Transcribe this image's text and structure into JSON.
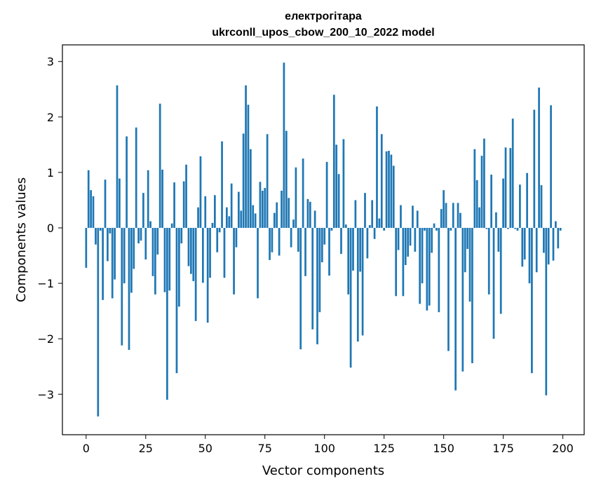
{
  "chart_data": {
    "type": "bar",
    "title": "електрогітара",
    "subtitle": "ukrconll_upos_cbow_200_10_2022 model",
    "xlabel": "Vector components",
    "ylabel": "Components values",
    "xlim": [
      -9.95,
      208.95
    ],
    "ylim": [
      -3.73,
      3.3
    ],
    "xticks": [
      0,
      25,
      50,
      75,
      100,
      125,
      150,
      175,
      200
    ],
    "xtick_labels": [
      "0",
      "25",
      "50",
      "75",
      "100",
      "125",
      "150",
      "175",
      "200"
    ],
    "yticks": [
      -3,
      -2,
      -1,
      0,
      1,
      2,
      3
    ],
    "ytick_labels": [
      "−3",
      "−2",
      "−1",
      "0",
      "1",
      "2",
      "3"
    ],
    "grid": false,
    "legend": "none",
    "bar_color": "#1f77b4",
    "x": [
      0,
      1,
      2,
      3,
      4,
      5,
      6,
      7,
      8,
      9,
      10,
      11,
      12,
      13,
      14,
      15,
      16,
      17,
      18,
      19,
      20,
      21,
      22,
      23,
      24,
      25,
      26,
      27,
      28,
      29,
      30,
      31,
      32,
      33,
      34,
      35,
      36,
      37,
      38,
      39,
      40,
      41,
      42,
      43,
      44,
      45,
      46,
      47,
      48,
      49,
      50,
      51,
      52,
      53,
      54,
      55,
      56,
      57,
      58,
      59,
      60,
      61,
      62,
      63,
      64,
      65,
      66,
      67,
      68,
      69,
      70,
      71,
      72,
      73,
      74,
      75,
      76,
      77,
      78,
      79,
      80,
      81,
      82,
      83,
      84,
      85,
      86,
      87,
      88,
      89,
      90,
      91,
      92,
      93,
      94,
      95,
      96,
      97,
      98,
      99,
      100,
      101,
      102,
      103,
      104,
      105,
      106,
      107,
      108,
      109,
      110,
      111,
      112,
      113,
      114,
      115,
      116,
      117,
      118,
      119,
      120,
      121,
      122,
      123,
      124,
      125,
      126,
      127,
      128,
      129,
      130,
      131,
      132,
      133,
      134,
      135,
      136,
      137,
      138,
      139,
      140,
      141,
      142,
      143,
      144,
      145,
      146,
      147,
      148,
      149,
      150,
      151,
      152,
      153,
      154,
      155,
      156,
      157,
      158,
      159,
      160,
      161,
      162,
      163,
      164,
      165,
      166,
      167,
      168,
      169,
      170,
      171,
      172,
      173,
      174,
      175,
      176,
      177,
      178,
      179,
      180,
      181,
      182,
      183,
      184,
      185,
      186,
      187,
      188,
      189,
      190,
      191,
      192,
      193,
      194,
      195,
      196,
      197,
      198,
      199
    ],
    "values": [
      -0.72,
      1.04,
      0.68,
      0.57,
      -0.3,
      -3.4,
      -0.05,
      -1.3,
      0.87,
      -0.6,
      -0.1,
      -1.27,
      -0.93,
      2.57,
      0.89,
      -2.12,
      -1.0,
      1.65,
      -2.2,
      -1.17,
      -0.74,
      1.81,
      -0.28,
      -0.23,
      0.63,
      -0.57,
      1.04,
      0.12,
      -0.87,
      -1.2,
      -0.48,
      2.24,
      1.05,
      -1.16,
      -3.1,
      -1.13,
      0.08,
      0.82,
      -2.62,
      -1.42,
      -0.28,
      0.84,
      1.14,
      -0.69,
      -0.83,
      -0.96,
      -1.68,
      0.37,
      1.29,
      -0.99,
      0.57,
      -1.71,
      -0.9,
      0.09,
      0.59,
      -0.44,
      -0.08,
      1.56,
      -0.9,
      0.37,
      0.21,
      0.8,
      -1.2,
      -0.35,
      0.65,
      0.31,
      1.7,
      2.57,
      2.22,
      1.42,
      0.41,
      0.26,
      -1.27,
      0.83,
      0.67,
      0.72,
      1.69,
      -0.58,
      -0.44,
      0.27,
      0.46,
      -0.5,
      0.67,
      2.98,
      1.75,
      0.54,
      -0.35,
      0.15,
      1.09,
      -0.43,
      -2.19,
      1.25,
      -0.87,
      0.52,
      0.47,
      -1.83,
      0.31,
      -2.1,
      -1.52,
      -0.62,
      -0.3,
      1.19,
      -0.86,
      -0.05,
      2.4,
      1.5,
      0.97,
      -0.47,
      1.6,
      0.06,
      -1.2,
      -2.52,
      -0.77,
      0.5,
      -2.05,
      -0.79,
      -1.94,
      0.63,
      -0.55,
      0.05,
      0.5,
      -0.2,
      2.19,
      0.17,
      1.69,
      -0.05,
      1.38,
      1.39,
      1.32,
      1.12,
      -1.23,
      -0.4,
      0.41,
      -1.23,
      -0.67,
      -0.52,
      -0.32,
      0.4,
      -0.43,
      0.31,
      -1.37,
      -1.0,
      -0.05,
      -1.49,
      -1.4,
      -0.45,
      0.08,
      -0.05,
      -1.52,
      0.34,
      0.68,
      0.45,
      -2.22,
      -0.05,
      0.45,
      -2.93,
      0.45,
      0.27,
      -2.59,
      -0.8,
      -0.38,
      -1.33,
      -2.44,
      1.42,
      0.86,
      0.37,
      1.3,
      1.61,
      -0.02,
      -1.2,
      0.96,
      -2.0,
      0.28,
      -0.43,
      -1.55,
      0.89,
      1.45,
      -0.02,
      1.44,
      1.97,
      -0.02,
      -0.05,
      0.78,
      -0.7,
      -0.57,
      0.99,
      -1.0,
      -2.62,
      2.13,
      -0.8,
      2.53,
      0.77,
      -0.45,
      -3.02,
      -0.66,
      2.21,
      -0.59,
      0.12,
      -0.37,
      -0.05
    ]
  }
}
